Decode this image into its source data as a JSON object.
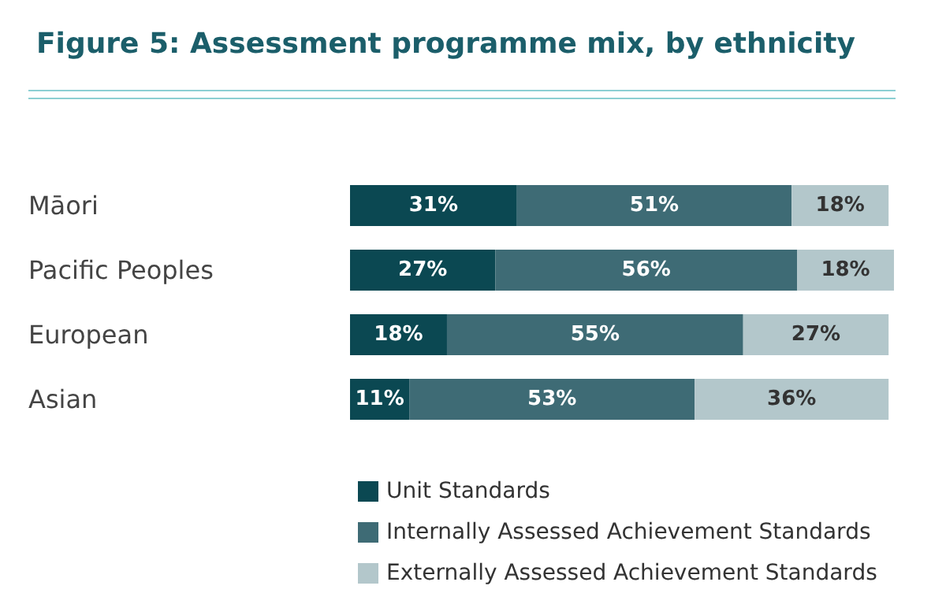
{
  "chart_data": {
    "type": "bar",
    "title": "Figure 5: Assessment programme mix, by ethnicity",
    "orientation": "horizontal",
    "stacked": true,
    "legend": "bottom",
    "categories": [
      "Māori",
      "Pacific Peoples",
      "European",
      "Asian"
    ],
    "series": [
      {
        "name": "Unit Standards",
        "color": "#0b4852",
        "values": [
          31,
          27,
          18,
          11
        ],
        "value_labels": [
          "31%",
          "27%",
          "18%",
          "11%"
        ]
      },
      {
        "name": "Internally Assessed Achievement Standards",
        "color": "#3e6b75",
        "values": [
          51,
          56,
          55,
          53
        ],
        "value_labels": [
          "51%",
          "56%",
          "55%",
          "53%"
        ]
      },
      {
        "name": "Externally Assessed Achievement Standards",
        "color": "#b3c7cb",
        "values": [
          18,
          18,
          27,
          36
        ],
        "value_labels": [
          "18%",
          "18%",
          "27%",
          "36%"
        ]
      }
    ]
  }
}
